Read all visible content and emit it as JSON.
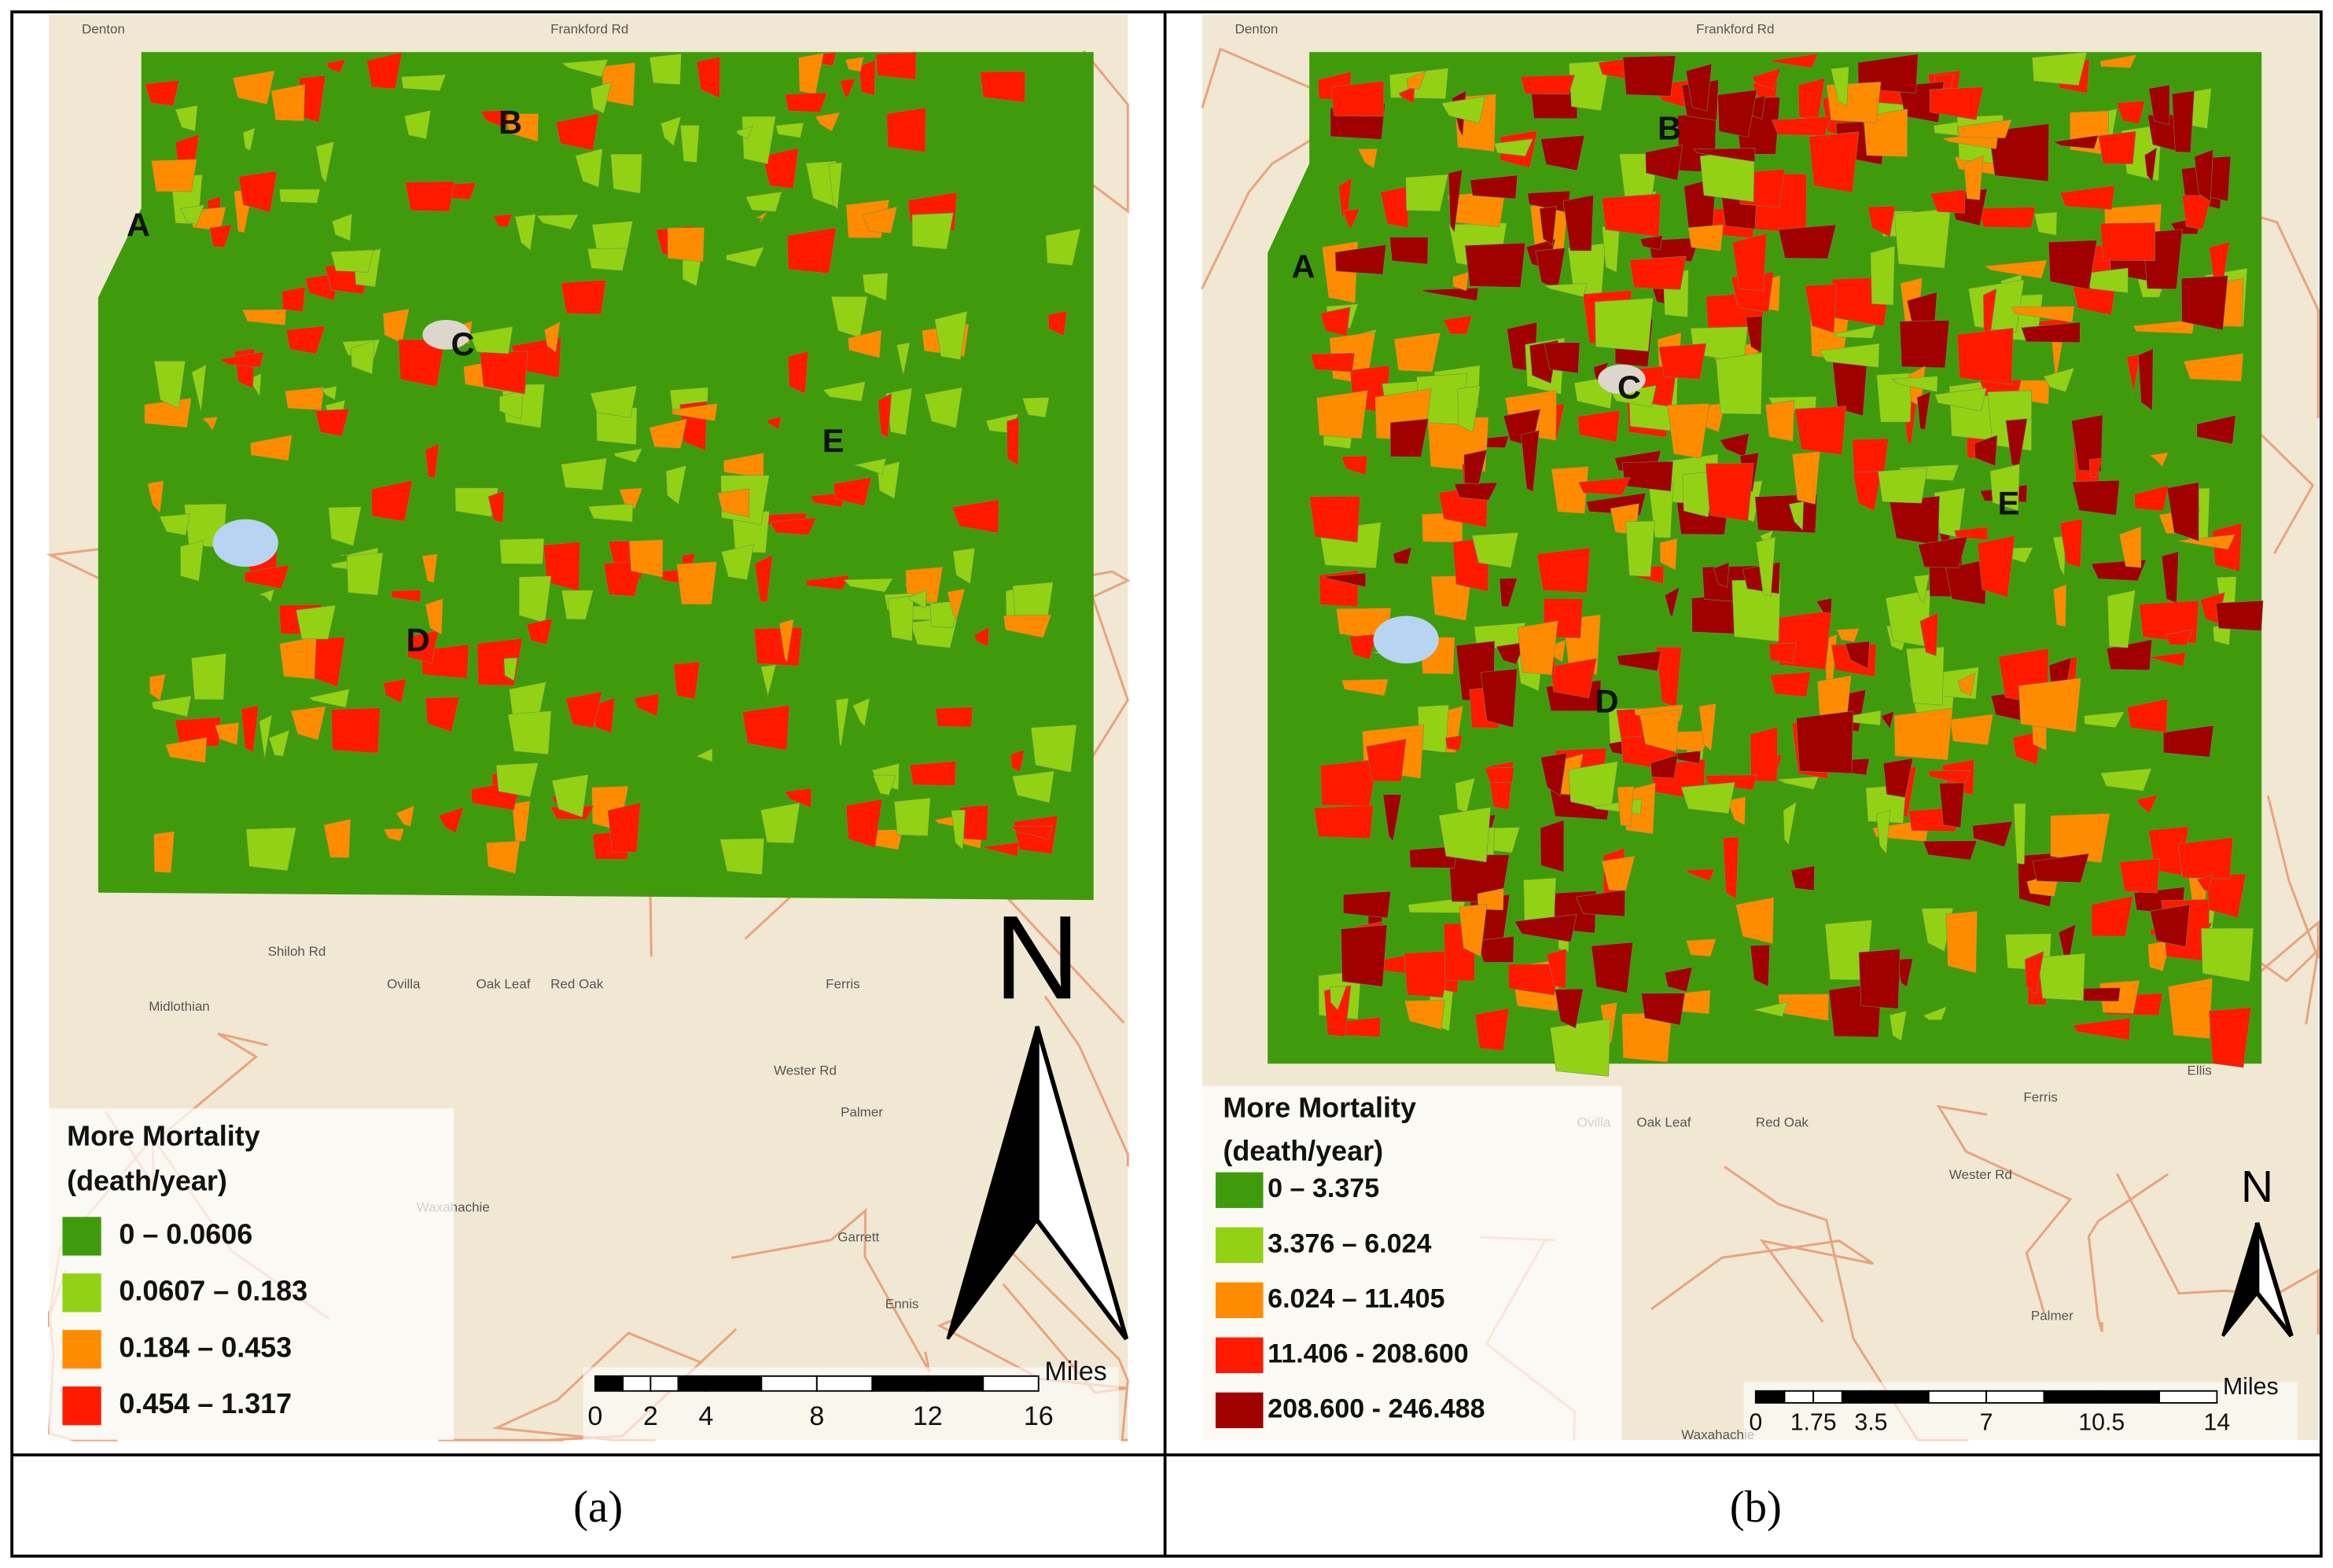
{
  "panels": [
    {
      "caption": "(a)",
      "site_labels": [
        "A",
        "B",
        "C",
        "D",
        "E"
      ],
      "legend": {
        "title": [
          "More Mortality",
          "(death/year)"
        ],
        "items": [
          {
            "label": "0 – 0.0606",
            "color": "#3f9b0b"
          },
          {
            "label": "0.0607 – 0.183",
            "color": "#93d115"
          },
          {
            "label": "0.184 – 0.453",
            "color": "#ff8c00"
          },
          {
            "label": "0.454 – 1.317",
            "color": "#ff1a00"
          }
        ]
      },
      "scale": {
        "ticks": [
          0,
          2,
          4,
          8,
          12,
          16
        ],
        "unit": "Miles"
      },
      "north": "N",
      "basemap_labels": [
        "Denton",
        "Frankford Rd",
        "Ovilla",
        "Oak Leaf",
        "Red Oak",
        "Ferris",
        "Shiloh Rd",
        "Midlothian",
        "Wester Rd",
        "Palmer",
        "Waxahachie",
        "Garrett",
        "Ennis"
      ]
    },
    {
      "caption": "(b)",
      "site_labels": [
        "A",
        "B",
        "C",
        "D",
        "E"
      ],
      "legend": {
        "title": [
          "More Mortality",
          "(death/year)"
        ],
        "items": [
          {
            "label": "0 – 3.375",
            "color": "#3f9b0b"
          },
          {
            "label": "3.376 – 6.024",
            "color": "#93d115"
          },
          {
            "label": "6.024 – 11.405",
            "color": "#ff8c00"
          },
          {
            "label": "11.406 - 208.600",
            "color": "#ff1a00"
          },
          {
            "label": "208.600 - 246.488",
            "color": "#a00000"
          }
        ]
      },
      "scale": {
        "ticks": [
          0,
          1.75,
          3.5,
          7,
          10.5,
          14
        ],
        "unit": "Miles"
      },
      "north": "N",
      "basemap_labels": [
        "Denton",
        "Frankford Rd",
        "Ovilla",
        "Oak Leaf",
        "Red Oak",
        "Ferris",
        "Ellis",
        "Wester Rd",
        "Palmer",
        "Waxahachie"
      ]
    }
  ]
}
